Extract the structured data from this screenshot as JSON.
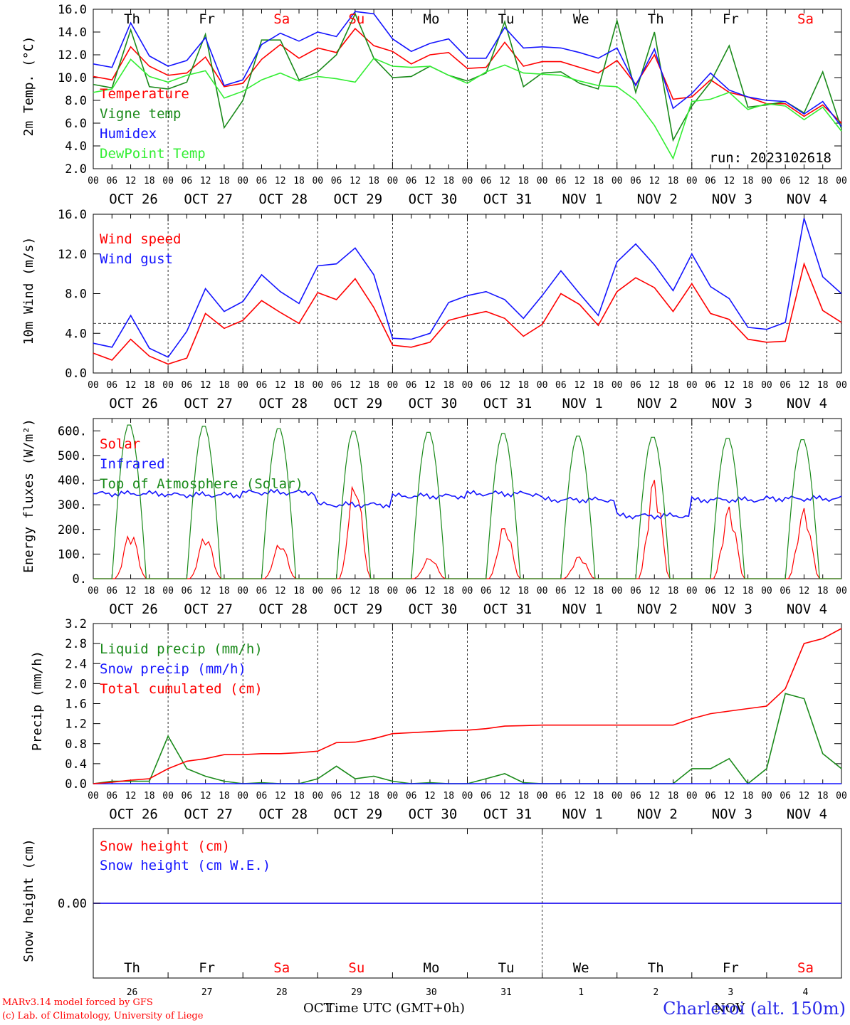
{
  "dates": [
    "OCT 26",
    "OCT 27",
    "OCT 28",
    "OCT 29",
    "OCT 30",
    "OCT 31",
    "NOV  1",
    "NOV  2",
    "NOV  3",
    "NOV  4"
  ],
  "hour_labels": [
    "00",
    "06",
    "12",
    "18"
  ],
  "weekdays": [
    {
      "label": "Th",
      "color": "#000000"
    },
    {
      "label": "Fr",
      "color": "#000000"
    },
    {
      "label": "Sa",
      "color": "#ff0000"
    },
    {
      "label": "Su",
      "color": "#ff0000"
    },
    {
      "label": "Mo",
      "color": "#000000"
    },
    {
      "label": "Tu",
      "color": "#000000"
    },
    {
      "label": "We",
      "color": "#000000"
    },
    {
      "label": "Th",
      "color": "#000000"
    },
    {
      "label": "Fr",
      "color": "#000000"
    },
    {
      "label": "Sa",
      "color": "#ff0000"
    }
  ],
  "bottom_day_numbers": [
    "26",
    "27",
    "28",
    "29",
    "30",
    "31",
    "1",
    "2",
    "3",
    "4"
  ],
  "bottom_month_left": "OCT",
  "bottom_month_right": "NOV",
  "x_axis_title": "Time UTC (GMT+0h)",
  "run_label": "run: 2023102618",
  "station": "Charleroi (alt. 150m)",
  "footer": {
    "line1": "MARv3.14 model forced by GFS",
    "line2": "(c) Lab. of Climatology, University of Liege"
  },
  "colors": {
    "red": "#ff0000",
    "green": "#1a8a1a",
    "blue": "#1414ff",
    "lightgreen": "#33ee33",
    "purple": "#7a1a9a"
  },
  "chart_data": [
    {
      "type": "line",
      "ylabel": "2m Temp. (°C)",
      "ylim": [
        2,
        16
      ],
      "yticks": [
        "2.0",
        "4.0",
        "6.0",
        "8.0",
        "10.0",
        "12.0",
        "14.0",
        "16.0"
      ],
      "x_hours_from_oct26_00": [
        0,
        6,
        12,
        18,
        24,
        30,
        36,
        42,
        48,
        54,
        60,
        66,
        72,
        78,
        84,
        90,
        96,
        102,
        108,
        114,
        120,
        126,
        132,
        138,
        144,
        150,
        156,
        162,
        168,
        174,
        180,
        186,
        192,
        198,
        204,
        210,
        216,
        222,
        228,
        234,
        240
      ],
      "series": [
        {
          "name": "Temperature",
          "color": "#ff0000",
          "values": [
            10.1,
            9.8,
            12.7,
            11.0,
            10.2,
            10.4,
            11.8,
            9.2,
            9.5,
            11.6,
            12.9,
            11.7,
            12.6,
            12.2,
            14.3,
            12.8,
            12.3,
            11.2,
            12.0,
            12.2,
            10.8,
            10.9,
            13.1,
            11.0,
            11.4,
            11.4,
            10.9,
            10.4,
            11.5,
            9.4,
            12.0,
            8.1,
            8.3,
            9.8,
            8.7,
            8.3,
            7.7,
            7.7,
            6.6,
            7.6,
            6.0
          ]
        },
        {
          "name": "Vigne temp",
          "color": "#1a8a1a",
          "values": [
            9.4,
            9.1,
            14.2,
            9.2,
            9.0,
            9.6,
            13.8,
            5.6,
            8.0,
            13.3,
            13.3,
            9.8,
            10.5,
            12.0,
            15.6,
            11.7,
            10.0,
            10.1,
            11.0,
            10.2,
            9.7,
            10.4,
            14.9,
            9.2,
            10.4,
            10.5,
            9.5,
            9.0,
            15.0,
            8.7,
            14.0,
            4.5,
            7.5,
            9.6,
            12.8,
            7.4,
            7.6,
            7.9,
            6.9,
            10.5,
            5.5
          ]
        },
        {
          "name": "Humidex",
          "color": "#1414ff",
          "values": [
            11.2,
            10.9,
            14.8,
            11.9,
            11.0,
            11.5,
            13.5,
            9.3,
            9.8,
            12.9,
            13.9,
            13.2,
            14.0,
            13.6,
            15.8,
            15.6,
            13.4,
            12.3,
            13.0,
            13.4,
            11.7,
            11.7,
            14.4,
            12.6,
            12.7,
            12.6,
            12.2,
            11.7,
            12.6,
            9.3,
            12.5,
            7.3,
            8.6,
            10.4,
            8.9,
            8.3,
            8.0,
            7.9,
            6.8,
            7.9,
            5.7
          ]
        },
        {
          "name": "DewPoint Temp",
          "color": "#33ee33",
          "values": [
            8.7,
            9.0,
            11.6,
            10.1,
            9.6,
            10.2,
            10.6,
            8.2,
            8.8,
            9.8,
            10.4,
            9.7,
            10.1,
            9.9,
            9.6,
            11.7,
            11.0,
            10.9,
            11.0,
            10.2,
            9.5,
            10.5,
            11.1,
            10.4,
            10.3,
            10.2,
            9.7,
            9.3,
            9.2,
            8.0,
            5.8,
            2.9,
            7.9,
            8.1,
            8.7,
            7.2,
            7.7,
            7.5,
            6.3,
            7.4,
            5.3
          ]
        }
      ]
    },
    {
      "type": "line",
      "ylabel": "10m Wind (m/s)",
      "ylim": [
        0,
        16
      ],
      "yticks": [
        "0.0",
        "4.0",
        "8.0",
        "12.0",
        "16.0"
      ],
      "reference_line": 5,
      "x_hours_from_oct26_00": [
        0,
        6,
        12,
        18,
        24,
        30,
        36,
        42,
        48,
        54,
        60,
        66,
        72,
        78,
        84,
        90,
        96,
        102,
        108,
        114,
        120,
        126,
        132,
        138,
        144,
        150,
        156,
        162,
        168,
        174,
        180,
        186,
        192,
        198,
        204,
        210,
        216,
        222,
        228,
        234,
        240
      ],
      "series": [
        {
          "name": "Wind speed",
          "color": "#ff0000",
          "values": [
            2.0,
            1.3,
            3.4,
            1.7,
            0.9,
            1.5,
            6.0,
            4.5,
            5.3,
            7.3,
            6.1,
            5.0,
            8.1,
            7.4,
            9.5,
            6.6,
            2.8,
            2.6,
            3.1,
            5.3,
            5.8,
            6.2,
            5.5,
            3.7,
            4.9,
            8.0,
            6.9,
            4.8,
            8.2,
            9.6,
            8.6,
            6.2,
            9.0,
            6.0,
            5.4,
            3.4,
            3.1,
            3.2,
            11.0,
            6.3,
            5.1
          ]
        },
        {
          "name": "Wind gust",
          "color": "#1414ff",
          "values": [
            3.0,
            2.6,
            5.8,
            2.5,
            1.6,
            4.2,
            8.5,
            6.2,
            7.2,
            9.9,
            8.2,
            7.0,
            10.8,
            11.0,
            12.6,
            9.9,
            3.5,
            3.4,
            4.0,
            7.1,
            7.8,
            8.2,
            7.4,
            5.5,
            7.8,
            10.3,
            8.0,
            5.8,
            11.2,
            13.0,
            10.9,
            8.3,
            12.0,
            8.7,
            7.5,
            4.6,
            4.4,
            5.1,
            15.6,
            9.7,
            8.0
          ]
        }
      ]
    },
    {
      "type": "line",
      "ylabel": "Energy fluxes (W/m²)",
      "ylim": [
        0,
        650
      ],
      "yticks": [
        "0.",
        "100.",
        "200.",
        "300.",
        "400.",
        "500.",
        "600."
      ],
      "series": [
        {
          "name": "Solar",
          "color": "#ff0000",
          "peaks_per_day": [
            195,
            180,
            150,
            410,
            90,
            225,
            95,
            420,
            300,
            290
          ]
        },
        {
          "name": "Infrared",
          "color": "#1414ff",
          "level_per_day": [
            345,
            340,
            350,
            300,
            335,
            345,
            320,
            255,
            320,
            325
          ]
        },
        {
          "name": "Top of Atmosphere (Solar)",
          "color": "#1a8a1a",
          "peaks_per_day": [
            630,
            625,
            615,
            605,
            600,
            595,
            585,
            580,
            575,
            570
          ]
        }
      ]
    },
    {
      "type": "line",
      "ylabel": "Precip (mm/h)",
      "ylim": [
        0,
        3.2
      ],
      "yticks": [
        "0.0",
        "0.4",
        "0.8",
        "1.2",
        "1.6",
        "2.0",
        "2.4",
        "2.8",
        "3.2"
      ],
      "x_hours_from_oct26_00": [
        0,
        6,
        12,
        18,
        24,
        30,
        36,
        42,
        48,
        54,
        60,
        66,
        72,
        78,
        84,
        90,
        96,
        102,
        108,
        114,
        120,
        126,
        132,
        138,
        144,
        150,
        156,
        162,
        168,
        174,
        180,
        186,
        192,
        198,
        204,
        210,
        216,
        222,
        228,
        234,
        240
      ],
      "series": [
        {
          "name": "Liquid precip (mm/h)",
          "color": "#1a8a1a",
          "values": [
            0.0,
            0.05,
            0.05,
            0.05,
            0.95,
            0.3,
            0.15,
            0.05,
            0.0,
            0.02,
            0.0,
            0.0,
            0.1,
            0.35,
            0.1,
            0.15,
            0.05,
            0.0,
            0.02,
            0.0,
            0.0,
            0.1,
            0.2,
            0.02,
            0.0,
            0.0,
            0.0,
            0.0,
            0.0,
            0.0,
            0.0,
            0.0,
            0.3,
            0.3,
            0.5,
            0.0,
            0.3,
            1.8,
            1.7,
            0.6,
            0.3
          ]
        },
        {
          "name": "Snow precip (mm/h)",
          "color": "#1414ff",
          "values": [
            0,
            0,
            0,
            0,
            0,
            0,
            0,
            0,
            0,
            0,
            0,
            0,
            0,
            0,
            0,
            0,
            0,
            0,
            0,
            0,
            0,
            0,
            0,
            0,
            0,
            0,
            0,
            0,
            0,
            0,
            0,
            0,
            0,
            0,
            0,
            0,
            0,
            0,
            0,
            0,
            0
          ]
        },
        {
          "name": "Total cumulated (cm)",
          "color": "#ff0000",
          "values": [
            0.0,
            0.03,
            0.07,
            0.1,
            0.3,
            0.45,
            0.5,
            0.58,
            0.58,
            0.6,
            0.6,
            0.62,
            0.65,
            0.82,
            0.83,
            0.9,
            1.0,
            1.02,
            1.04,
            1.06,
            1.07,
            1.1,
            1.15,
            1.16,
            1.17,
            1.17,
            1.17,
            1.17,
            1.17,
            1.17,
            1.17,
            1.17,
            1.3,
            1.4,
            1.45,
            1.5,
            1.55,
            1.9,
            2.8,
            2.9,
            3.1
          ]
        }
      ]
    },
    {
      "type": "line",
      "ylabel": "Snow height (cm)",
      "yticks": [
        "0.00"
      ],
      "series": [
        {
          "name": "Snow height (cm)",
          "color": "#ff0000",
          "values": [
            0,
            0
          ]
        },
        {
          "name": "Snow height (cm W.E.)",
          "color": "#1414ff",
          "values": [
            0,
            0
          ]
        }
      ]
    }
  ]
}
